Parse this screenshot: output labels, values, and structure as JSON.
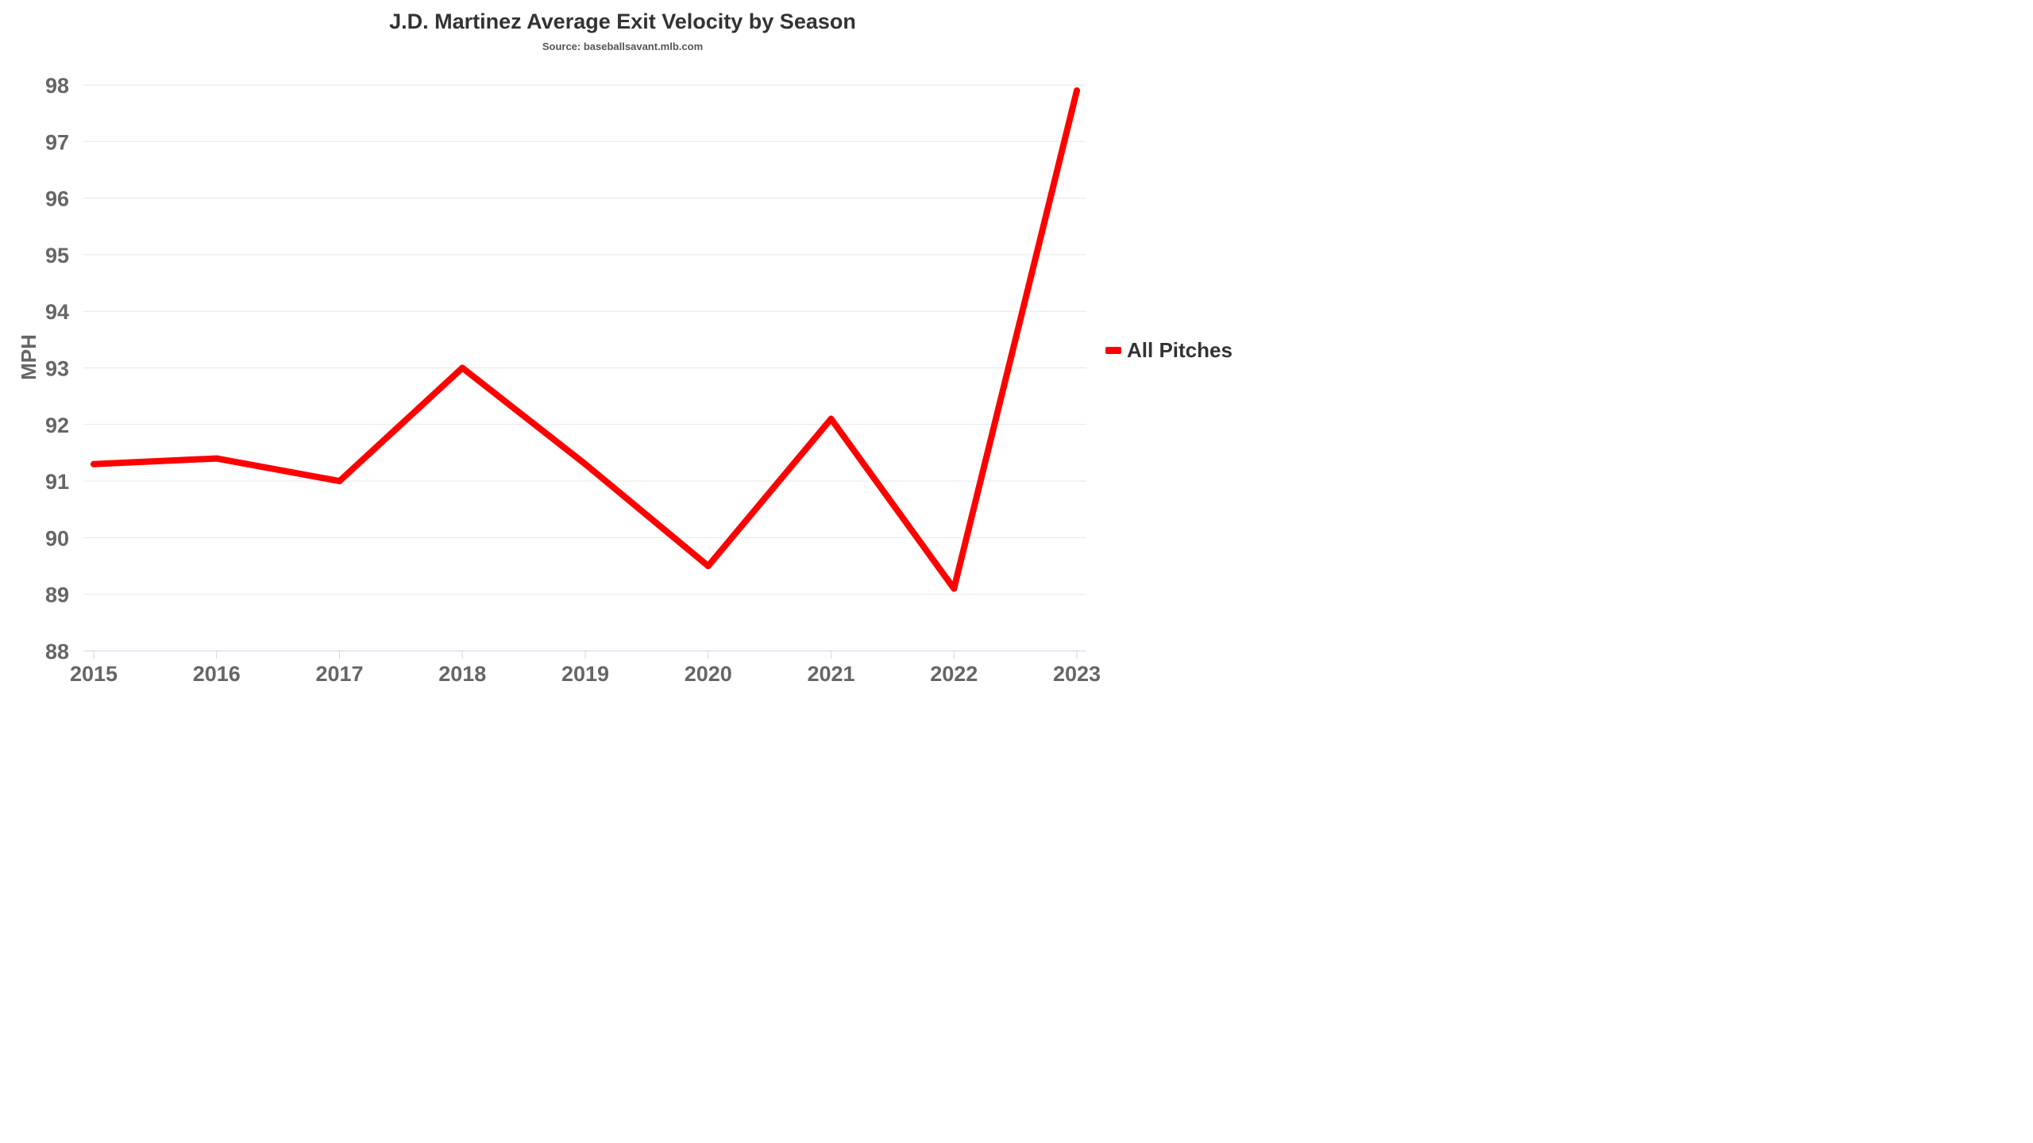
{
  "chart_data": {
    "type": "line",
    "title": "J.D. Martinez Average Exit Velocity by Season",
    "subtitle": "Source: baseballsavant.mlb.com",
    "xlabel": "",
    "ylabel": "MPH",
    "categories": [
      "2015",
      "2016",
      "2017",
      "2018",
      "2019",
      "2020",
      "2021",
      "2022",
      "2023"
    ],
    "series": [
      {
        "name": "All Pitches",
        "color": "#ff0000",
        "values": [
          91.3,
          91.4,
          91.0,
          93.0,
          91.3,
          89.5,
          92.1,
          89.1,
          97.9
        ]
      }
    ],
    "ylim": [
      88,
      98
    ],
    "yticks": [
      88,
      89,
      90,
      91,
      92,
      93,
      94,
      95,
      96,
      97,
      98
    ],
    "grid": true,
    "legend_position": "right"
  }
}
